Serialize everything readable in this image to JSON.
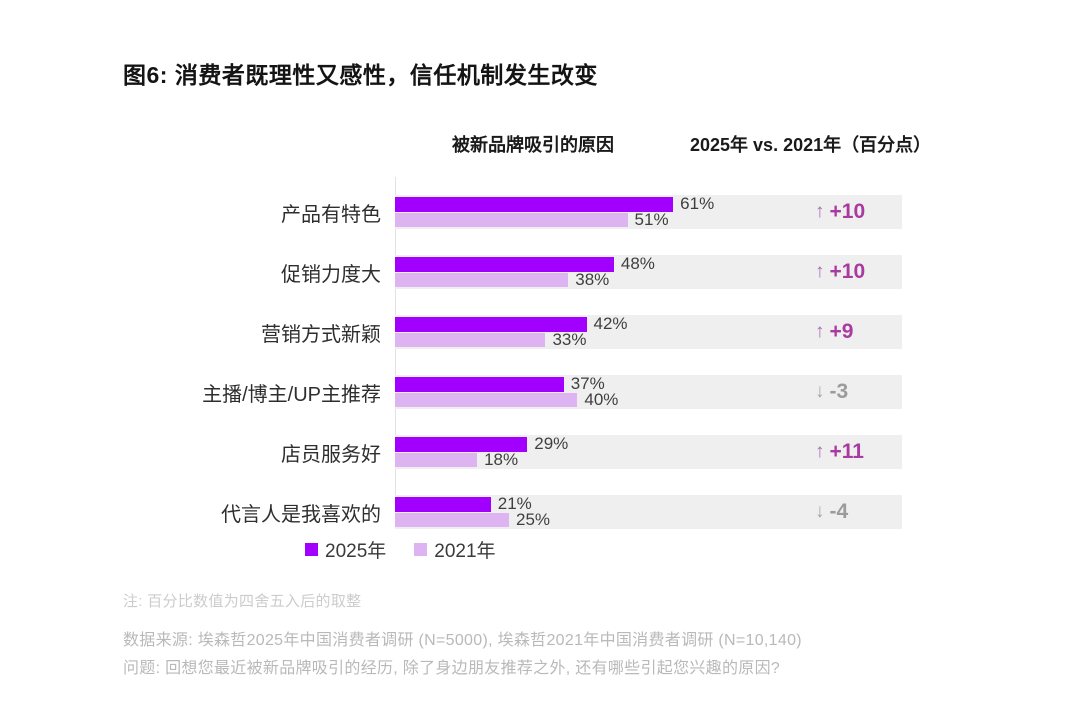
{
  "figure": {
    "title": "图6: 消费者既理性又感性，信任机制发生改变"
  },
  "chart_data": {
    "type": "bar",
    "orientation": "horizontal",
    "subtitle_left": "被新品牌吸引的原因",
    "subtitle_right": "2025年 vs. 2021年（百分点）",
    "categories": [
      "产品有特色",
      "促销力度大",
      "营销方式新颖",
      "主播/博主/UP主推荐",
      "店员服务好",
      "代言人是我喜欢的"
    ],
    "series": [
      {
        "name": "2025年",
        "color": "#A100FF",
        "values": [
          61,
          48,
          42,
          37,
          29,
          21
        ]
      },
      {
        "name": "2021年",
        "color": "#DDB3F2",
        "values": [
          51,
          38,
          33,
          40,
          18,
          25
        ]
      }
    ],
    "value_suffix": "%",
    "changes": [
      {
        "label": "+10",
        "direction": "up"
      },
      {
        "label": "+10",
        "direction": "up"
      },
      {
        "label": "+9",
        "direction": "up"
      },
      {
        "label": "-3",
        "direction": "down"
      },
      {
        "label": "+11",
        "direction": "up"
      },
      {
        "label": "-4",
        "direction": "down"
      }
    ],
    "legend": [
      {
        "label": "2025年",
        "color": "#A100FF"
      },
      {
        "label": "2021年",
        "color": "#DDB3F2"
      }
    ],
    "icons": {
      "up": "↑",
      "down": "↓"
    },
    "colors": {
      "track": "#EFEFEF",
      "change_positive": "#A93AA0",
      "change_negative": "#9B9B9B",
      "arrow_up": "#A76DB5",
      "arrow_down": "#A6A6A6"
    },
    "xlim": [
      0,
      111
    ]
  },
  "footnotes": {
    "note": "注: 百分比数值为四舍五入后的取整",
    "source": "数据来源: 埃森哲2025年中国消费者调研 (N=5000), 埃森哲2021年中国消费者调研 (N=10,140)",
    "question": "问题: 回想您最近被新品牌吸引的经历, 除了身边朋友推荐之外, 还有哪些引起您兴趣的原因?"
  }
}
